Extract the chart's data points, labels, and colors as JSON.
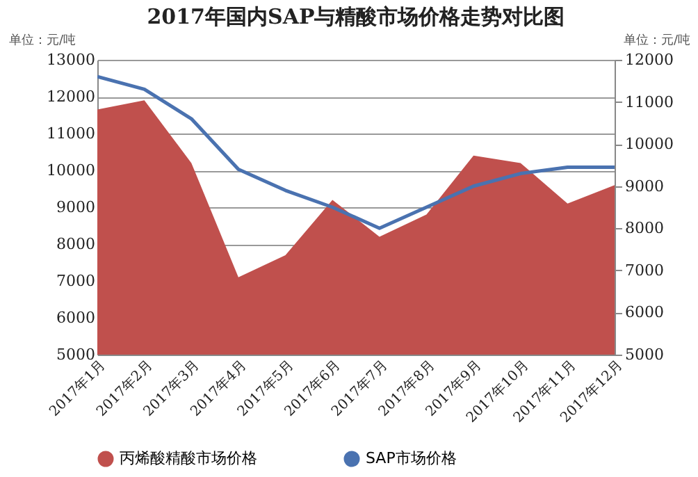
{
  "chart_data": {
    "type": "area",
    "title": "2017年国内SAP与精酸市场价格走势对比图",
    "ylabel": "单位：元/吨",
    "y2label": "单位：元/吨",
    "categories": [
      "2017年1月",
      "2017年2月",
      "2017年3月",
      "2017年4月",
      "2017年5月",
      "2017年6月",
      "2017年7月",
      "2017年8月",
      "2017年9月",
      "2017年10月",
      "2017年11月",
      "2017年12月"
    ],
    "series": [
      {
        "name": "丙烯酸精酸市场价格",
        "color": "#c0504d",
        "values": [
          11650,
          11900,
          10200,
          7100,
          7700,
          9200,
          8200,
          8800,
          10400,
          10200,
          9100,
          9600
        ]
      },
      {
        "name": "SAP市场价格",
        "type": "line",
        "axis": "y2",
        "color": "#4a72b0",
        "values": [
          11600,
          11300,
          10600,
          9400,
          8900,
          8500,
          8000,
          8500,
          9000,
          9300,
          9450,
          9450
        ]
      }
    ],
    "ylim": [
      5000,
      13000
    ],
    "yticks": [
      5000,
      6000,
      7000,
      8000,
      9000,
      10000,
      11000,
      12000,
      13000
    ],
    "y2lim": [
      5000,
      12000
    ],
    "y2ticks": [
      5000,
      6000,
      7000,
      8000,
      9000,
      10000,
      11000,
      12000
    ],
    "grid": "y",
    "legend": "bottom",
    "marker": "none",
    "line_style": "solid"
  }
}
